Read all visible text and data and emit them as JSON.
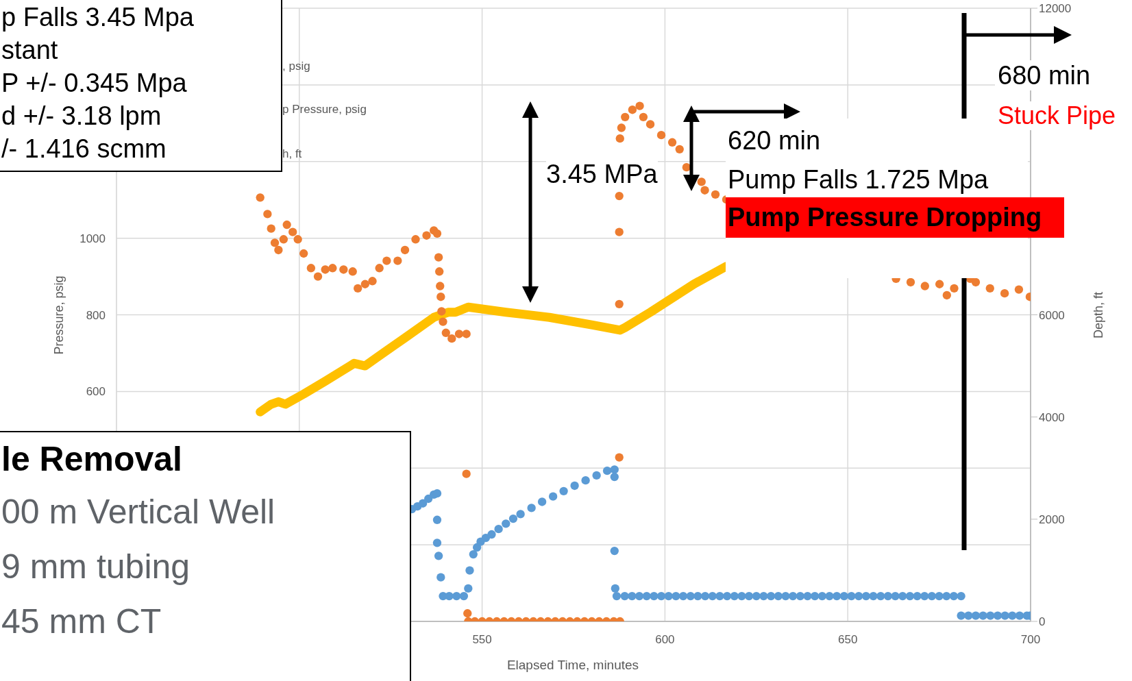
{
  "chart_data": {
    "type": "scatter",
    "xlabel": "Elapsed Time, minutes",
    "ylabel": "Pressure, psig",
    "y2label": "Depth, ft",
    "xlim": [
      450,
      700
    ],
    "xticks": [
      {
        "value": 450,
        "label": null
      },
      {
        "value": 500,
        "label": null
      },
      550,
      600,
      650,
      700
    ],
    "ylim": [
      0,
      1600
    ],
    "yticks": [
      {
        "value": 0,
        "label": null
      },
      {
        "value": 200,
        "label": null
      },
      {
        "value": 400,
        "label": null
      },
      600,
      800,
      1000,
      {
        "value": 1200,
        "label": null
      },
      {
        "value": 1400,
        "label": null
      },
      {
        "value": 1600,
        "label": null
      }
    ],
    "y2lim": [
      0,
      12000
    ],
    "y2ticks": [
      0,
      2000,
      4000,
      6000,
      {
        "value": 8000,
        "label": null
      },
      {
        "value": 10000,
        "label": null
      },
      12000
    ],
    "grid": true,
    "series": [
      {
        "type": "line",
        "axis": "y2",
        "color": "#ffc000",
        "x": [
          489.3,
          492.3,
          494.3,
          496.2,
          501.2,
          507.1,
          515,
          518,
          520.9,
          528.9,
          536.8,
          540.7,
          542.7,
          546.2,
          556.5,
          568.4,
          580.2,
          587.7,
          589.1,
          596,
          607.9,
          616.8
        ],
        "values": [
          4100,
          4250,
          4300,
          4250,
          4450,
          4700,
          5050,
          5000,
          5150,
          5550,
          5950,
          6050,
          6050,
          6150,
          6050,
          5950,
          5800,
          5700,
          5750,
          6050,
          6600,
          6950
        ]
      },
      {
        "color": "#ed7d31",
        "marker": "circle",
        "x": [
          489.3,
          491.3,
          492.3,
          493.3,
          494.3,
          495.7,
          496.6,
          498.2,
          499.6,
          501.2,
          503.2,
          505.1,
          507.1,
          509.1,
          512.1,
          514.6,
          516,
          518,
          520,
          521.9,
          523.9,
          526.9,
          528.9,
          531.8,
          534.8,
          536.8,
          537.7,
          538.1,
          538.3,
          538.5,
          538.7,
          538.9,
          539.3,
          540.1,
          541.7,
          543.7,
          545.7,
          545.7,
          546,
          546.2,
          548,
          550,
          552,
          554,
          556,
          558,
          560,
          562,
          564,
          566,
          568,
          570,
          572,
          574,
          576,
          578,
          580,
          582,
          584,
          586,
          587.7,
          587.5,
          587.5,
          587.5,
          587.5,
          587.7,
          588.1,
          589.1,
          591.1,
          593.1,
          594.1,
          596,
          599,
          602,
          604,
          605.9,
          610,
          610.9,
          613.8,
          616.8,
          663.2,
          667.2,
          671.1,
          675.1,
          677.1,
          679.1,
          683.5,
          685,
          688.9,
          692.9,
          696.8,
          699.8
        ],
        "values": [
          1106,
          1063,
          1025,
          988,
          969,
          997,
          1035,
          1016,
          997,
          960,
          922,
          900,
          918,
          922,
          918,
          913,
          869,
          880,
          888,
          922,
          941,
          941,
          969,
          997,
          1007,
          1020,
          1012,
          950,
          913,
          875,
          847,
          809,
          782,
          753,
          738,
          750,
          750,
          385,
          21,
          0,
          0,
          0,
          0,
          0,
          0,
          0,
          0,
          0,
          0,
          0,
          0,
          0,
          0,
          0,
          0,
          0,
          0,
          0,
          0,
          0,
          0,
          428,
          828,
          1016,
          1110,
          1260,
          1288,
          1316,
          1335,
          1345,
          1316,
          1297,
          1269,
          1250,
          1232,
          1185,
          1147,
          1125,
          1114,
          1101,
          894,
          885,
          875,
          880,
          851,
          869,
          894,
          885,
          869,
          856,
          866,
          847
        ]
      },
      {
        "color": "#5b9bd5",
        "marker": "circle",
        "x": [
          530.8,
          532.3,
          533.8,
          535.3,
          536.8,
          537.7,
          537.7,
          537.7,
          538.1,
          538.7,
          539.3,
          541,
          543,
          545,
          546.2,
          546.6,
          547.6,
          548.6,
          549.6,
          551,
          552.6,
          554.5,
          556.5,
          558.5,
          560.5,
          563.5,
          566.4,
          569.4,
          572.3,
          575.3,
          578.3,
          581.3,
          584.2,
          586.2,
          586.2,
          586.2,
          586.4,
          586.8,
          589,
          591,
          593,
          595,
          597,
          599,
          601,
          603,
          605,
          607,
          609,
          611,
          613,
          615,
          617,
          619,
          621,
          623,
          625,
          627,
          629,
          631,
          633,
          635,
          637,
          639,
          641,
          643,
          645,
          647,
          649,
          651,
          653,
          655,
          657,
          659,
          661,
          663,
          665,
          667,
          669,
          671,
          673,
          675,
          677,
          679,
          681,
          681,
          683,
          685,
          687,
          689,
          691,
          693,
          695,
          697,
          699,
          699.8
        ],
        "values": [
          293,
          300,
          308,
          320,
          331,
          334,
          265,
          205,
          171,
          115,
          66,
          66,
          66,
          66,
          86,
          133,
          175,
          193,
          208,
          218,
          227,
          241,
          255,
          268,
          280,
          296,
          312,
          326,
          340,
          354,
          368,
          381,
          393,
          396,
          377,
          184,
          86,
          66,
          66,
          66,
          66,
          66,
          66,
          66,
          66,
          66,
          66,
          66,
          66,
          66,
          66,
          66,
          66,
          66,
          66,
          66,
          66,
          66,
          66,
          66,
          66,
          66,
          66,
          66,
          66,
          66,
          66,
          66,
          66,
          66,
          66,
          66,
          66,
          66,
          66,
          66,
          66,
          66,
          66,
          66,
          66,
          66,
          66,
          66,
          66,
          15,
          15,
          15,
          15,
          15,
          15,
          15,
          15,
          15,
          15,
          15
        ]
      }
    ],
    "annotations": [
      "p Falls 3.45 Mpa",
      "stant",
      "P +/- 0.345 Mpa",
      "d +/- 3.18 lpm",
      "/- 1.416 scmm",
      "le Removal",
      "00 m Vertical Well",
      "9 mm tubing",
      "45 mm CT",
      "3.45 MPa",
      "620 min",
      "Pump Falls 1.725 Mpa",
      "Pump Pressure Dropping",
      "680 min",
      "Stuck Pipe",
      ", psig",
      "p Pressure, psig",
      "h, ft"
    ]
  }
}
